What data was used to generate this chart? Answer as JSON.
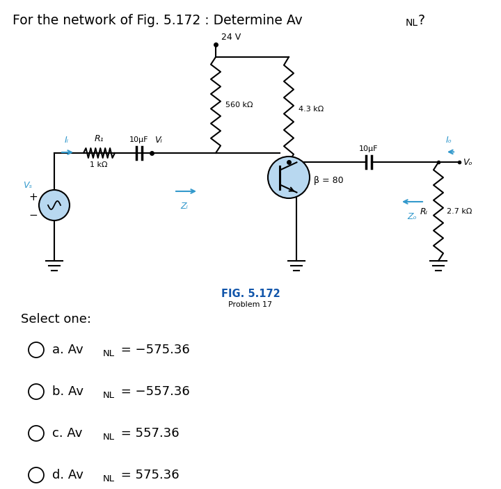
{
  "title1": "For the network of Fig. 5.172 : Determine Av",
  "title_sub": "NL",
  "title2": "?",
  "fig_label": "FIG. 5.172",
  "fig_sublabel": "Problem 17",
  "select_one": "Select one:",
  "options": [
    {
      "letter": "a",
      "avtext": "Av",
      "sub": "NL",
      "val": " = -575.36"
    },
    {
      "letter": "b",
      "avtext": "Av",
      "sub": "NL",
      "val": " = -557.36"
    },
    {
      "letter": "c",
      "avtext": "Av",
      "sub": "NL",
      "val": " = 557.36"
    },
    {
      "letter": "d",
      "avtext": "Av",
      "sub": "NL",
      "val": " = 575.36"
    }
  ],
  "bg_color": "#ffffff",
  "highlight_color": "#b8d8f0",
  "fig_label_color": "#1155aa",
  "arrow_color": "#3399cc",
  "vcc": "24 V",
  "rb": "560 kΩ",
  "rc": "4.3 kΩ",
  "rl": "2.7 kΩ",
  "r1": "1 kΩ",
  "r1_label": "R₁",
  "cap": "10μF",
  "beta": "β = 80",
  "vs_plus": "+",
  "vs_minus": "−",
  "rl_label": "Rₗ"
}
